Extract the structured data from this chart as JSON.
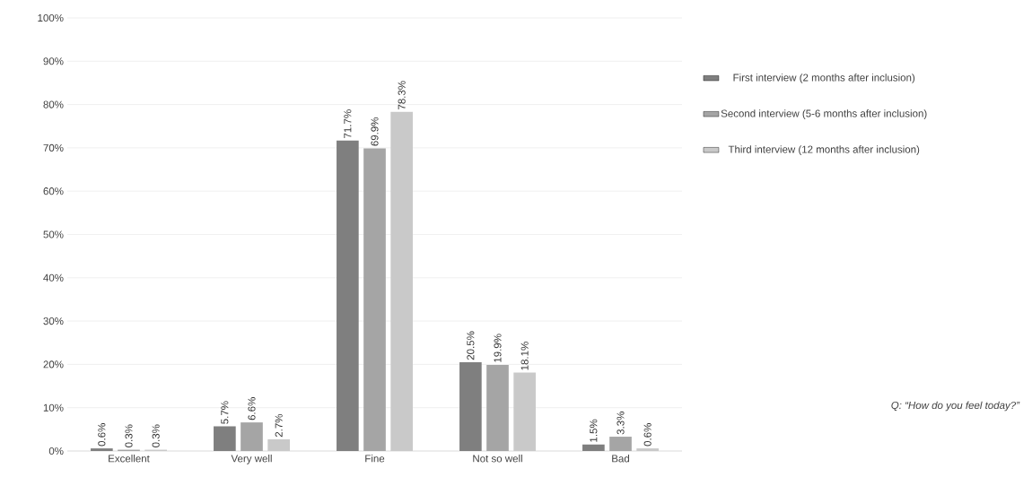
{
  "chart_data": {
    "type": "bar",
    "categories": [
      "Excellent",
      "Very well",
      "Fine",
      "Not so well",
      "Bad"
    ],
    "series": [
      {
        "name": "First interview (2 months after inclusion)",
        "color": "#7f7f7f",
        "values": [
          0.6,
          5.7,
          71.7,
          20.5,
          1.5
        ],
        "value_labels": [
          "0.6%",
          "5.7%",
          "71.7%",
          "20.5%",
          "1.5%"
        ]
      },
      {
        "name": "Second interview (5-6 months after inclusion)",
        "color": "#a5a5a5",
        "values": [
          0.3,
          6.6,
          69.9,
          19.9,
          3.3
        ],
        "value_labels": [
          "0.3%",
          "6.6%",
          "69.9%",
          "19.9%",
          "3.3%"
        ]
      },
      {
        "name": "Third interview (12 months after inclusion)",
        "color": "#c9c9c9",
        "values": [
          0.3,
          2.7,
          78.3,
          18.1,
          0.6
        ],
        "value_labels": [
          "0.3%",
          "2.7%",
          "78.3%",
          "18.1%",
          "0.6%"
        ]
      }
    ],
    "ylim": [
      0,
      100
    ],
    "yticks": [
      {
        "value": 0,
        "label": "0%"
      },
      {
        "value": 10,
        "label": "10%"
      },
      {
        "value": 20,
        "label": "20%"
      },
      {
        "value": 30,
        "label": "30%"
      },
      {
        "value": 40,
        "label": "40%"
      },
      {
        "value": 50,
        "label": "50%"
      },
      {
        "value": 60,
        "label": "60%"
      },
      {
        "value": 70,
        "label": "70%"
      },
      {
        "value": 80,
        "label": "80%"
      },
      {
        "value": 90,
        "label": "90%"
      },
      {
        "value": 100,
        "label": "100%"
      }
    ],
    "grid": "y",
    "legend": "right",
    "annotations": [
      "Q: “How do you feel today?”"
    ]
  }
}
